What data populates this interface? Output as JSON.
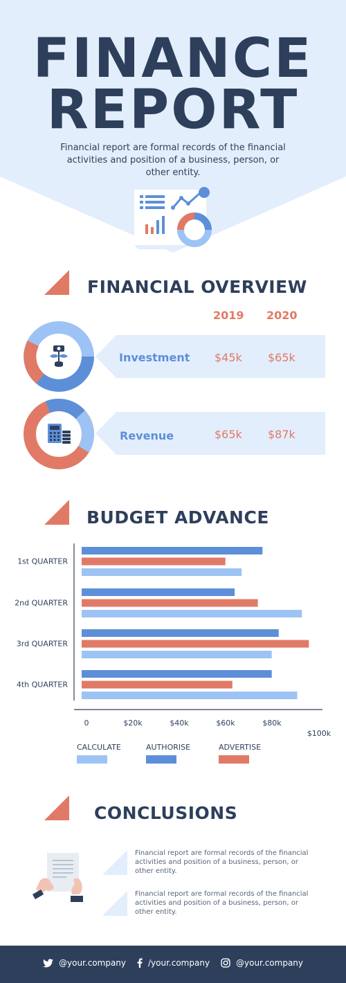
{
  "header": {
    "title_line1": "FINANCE",
    "title_line2": "REPORT",
    "subtitle": "Financial report are formal records of the financial activities and position of a business, person, or other entity."
  },
  "overview": {
    "title": "FINANCIAL OVERVIEW",
    "years": [
      "2019",
      "2020"
    ],
    "rows": [
      {
        "label": "Investment",
        "values": [
          "$45k",
          "$65k"
        ],
        "icon": "money-tree-icon"
      },
      {
        "label": "Revenue",
        "values": [
          "$65k",
          "$87k"
        ],
        "icon": "calculator-icon"
      }
    ]
  },
  "budget": {
    "title": "BUDGET ADVANCE"
  },
  "chart_data": {
    "type": "bar",
    "orientation": "horizontal",
    "categories": [
      "1st QUARTER",
      "2nd QUARTER",
      "3rd QUARTER",
      "4th QUARTER"
    ],
    "series": [
      {
        "name": "AUTHORISE",
        "color": "#5d8fd9",
        "values": [
          78,
          66,
          85,
          82
        ]
      },
      {
        "name": "ADVERTISE",
        "color": "#e07a66",
        "values": [
          62,
          76,
          98,
          65
        ]
      },
      {
        "name": "CALCULATE",
        "color": "#9dc3f5",
        "values": [
          69,
          95,
          82,
          93
        ]
      }
    ],
    "x_ticks": [
      "0",
      "$20k",
      "$40k",
      "$60k",
      "$80k",
      "$100k"
    ],
    "xlim": [
      0,
      100
    ],
    "legend_order": [
      "CALCULATE",
      "AUTHORISE",
      "ADVERTISE"
    ],
    "legend_position": "bottom"
  },
  "conclusions": {
    "title": "CONCLUSIONS",
    "items": [
      "Financial report are formal records of the financial activities and position of a business, person, or other entity.",
      "Financial report are formal records of the financial activities and position of a business, person, or other entity."
    ]
  },
  "footer": {
    "twitter": "@your.company",
    "facebook": "/your.company",
    "instagram": "@your.company"
  },
  "colors": {
    "navy": "#2e3f5c",
    "coral": "#e07a66",
    "blue": "#5d8fd9",
    "light_blue": "#9dc3f5",
    "pale_blue": "#e3eefc"
  }
}
